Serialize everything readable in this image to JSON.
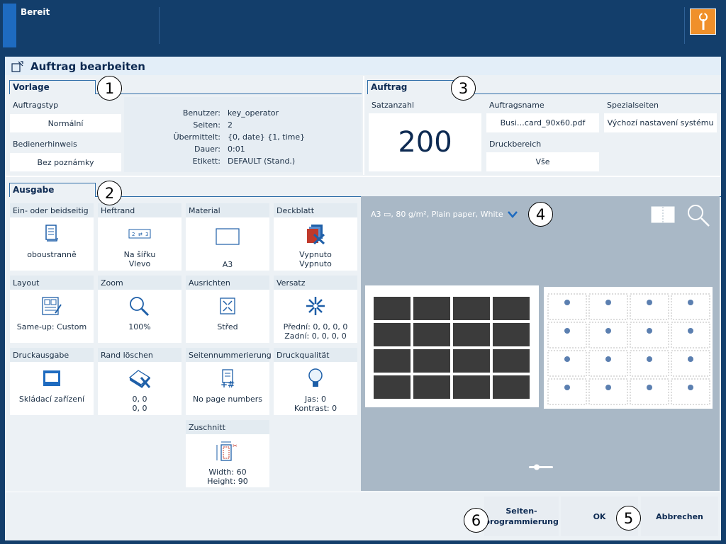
{
  "topbar": {
    "status": "Bereit"
  },
  "dialog": {
    "title": "Auftrag bearbeiten"
  },
  "vorlage": {
    "tab": "Vorlage",
    "auftragstyp_label": "Auftragstyp",
    "auftragstyp_value": "Normální",
    "bedienerhinweis_label": "Bedienerhinweis",
    "bedienerhinweis_value": "Bez poznámky",
    "info": [
      {
        "k": "Benutzer:",
        "v": "key_operator"
      },
      {
        "k": "Seiten:",
        "v": "2"
      },
      {
        "k": "Übermittelt:",
        "v": "{0, date} {1, time}"
      },
      {
        "k": "Dauer:",
        "v": "0:01"
      },
      {
        "k": "Etikett:",
        "v": "DEFAULT (Stand.)"
      }
    ]
  },
  "auftrag": {
    "tab": "Auftrag",
    "satzanzahl_label": "Satzanzahl",
    "satzanzahl_value": "200",
    "auftragsname_label": "Auftragsname",
    "auftragsname_value": "Busi…card_90x60.pdf",
    "druckbereich_label": "Druckbereich",
    "druckbereich_value": "Vše",
    "spezialseiten_label": "Spezialseiten",
    "spezialseiten_value": "Výchozí nastavení systému"
  },
  "ausgabe": {
    "tab": "Ausgabe",
    "tiles": [
      {
        "label": "Ein- oder beidseitig",
        "l1": "oboustranně",
        "l2": "",
        "icon": "duplex-icon"
      },
      {
        "label": "Heftrand",
        "l1": "Na šířku",
        "l2": "Vlevo",
        "icon": "binding-edge-icon"
      },
      {
        "label": "Material",
        "l1": "A3",
        "l2": "",
        "icon": "media-icon"
      },
      {
        "label": "Deckblatt",
        "l1": "Vypnuto",
        "l2": "Vypnuto",
        "icon": "cover-icon"
      },
      {
        "label": "Layout",
        "l1": "Same-up: Custom",
        "l2": "",
        "icon": "layout-icon"
      },
      {
        "label": "Zoom",
        "l1": "100%",
        "l2": "",
        "icon": "zoom-icon"
      },
      {
        "label": "Ausrichten",
        "l1": "Střed",
        "l2": "",
        "icon": "align-icon"
      },
      {
        "label": "Versatz",
        "l1": "Přední: 0, 0, 0, 0",
        "l2": "Zadní: 0, 0, 0, 0",
        "icon": "shift-icon"
      },
      {
        "label": "Druckausgabe",
        "l1": "Skládací zařízení",
        "l2": "",
        "icon": "output-icon"
      },
      {
        "label": "Rand löschen",
        "l1": "0, 0",
        "l2": "0, 0",
        "icon": "erase-edge-icon"
      },
      {
        "label": "Seitennummerierung",
        "l1": "No page numbers",
        "l2": "",
        "icon": "page-number-icon"
      },
      {
        "label": "Druckqualität",
        "l1": "Jas: 0",
        "l2": "Kontrast: 0",
        "icon": "quality-icon"
      },
      {
        "label": "Zuschnitt",
        "l1": "Width: 60",
        "l2": "Height: 90",
        "icon": "trim-icon"
      }
    ]
  },
  "preview": {
    "media": "A3 ▭, 80 g/m², Plain paper, White"
  },
  "buttons": {
    "seiten": "Seiten-\nprogrammierung",
    "ok": "OK",
    "abbrechen": "Abbrechen"
  },
  "callouts": [
    "1",
    "2",
    "3",
    "4",
    "5",
    "6"
  ],
  "colors": {
    "header": "#133e6b",
    "accent": "#1e6bc0",
    "tool": "#f0902a",
    "preview_bg": "#a9b8c6"
  }
}
